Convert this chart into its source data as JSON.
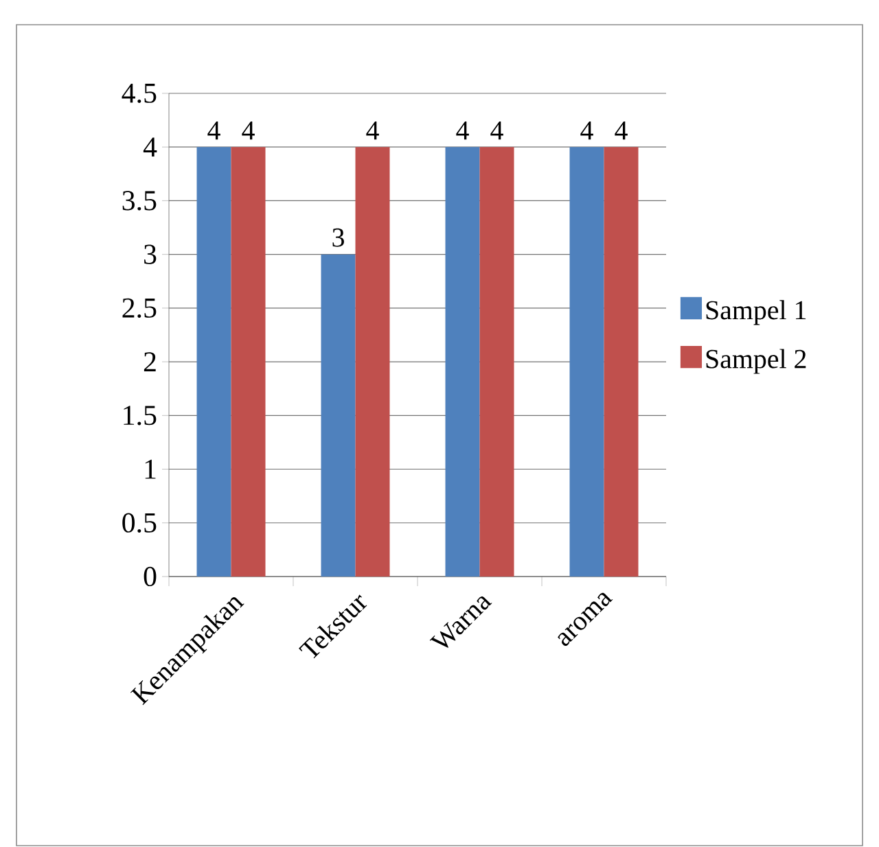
{
  "chart_data": {
    "type": "bar",
    "categories": [
      "Kenampakan",
      "Tekstur",
      "Warna",
      "aroma"
    ],
    "series": [
      {
        "name": "Sampel 1",
        "color": "#4f81bd",
        "values": [
          4,
          3,
          4,
          4
        ]
      },
      {
        "name": "Sampel 2",
        "color": "#c0504d",
        "values": [
          4,
          4,
          4,
          4
        ]
      }
    ],
    "ylim": [
      0,
      4.5
    ],
    "yticks": [
      0,
      0.5,
      1,
      1.5,
      2,
      2.5,
      3,
      3.5,
      4,
      4.5
    ],
    "grid": "y",
    "legend": "right",
    "data_labels": true
  }
}
